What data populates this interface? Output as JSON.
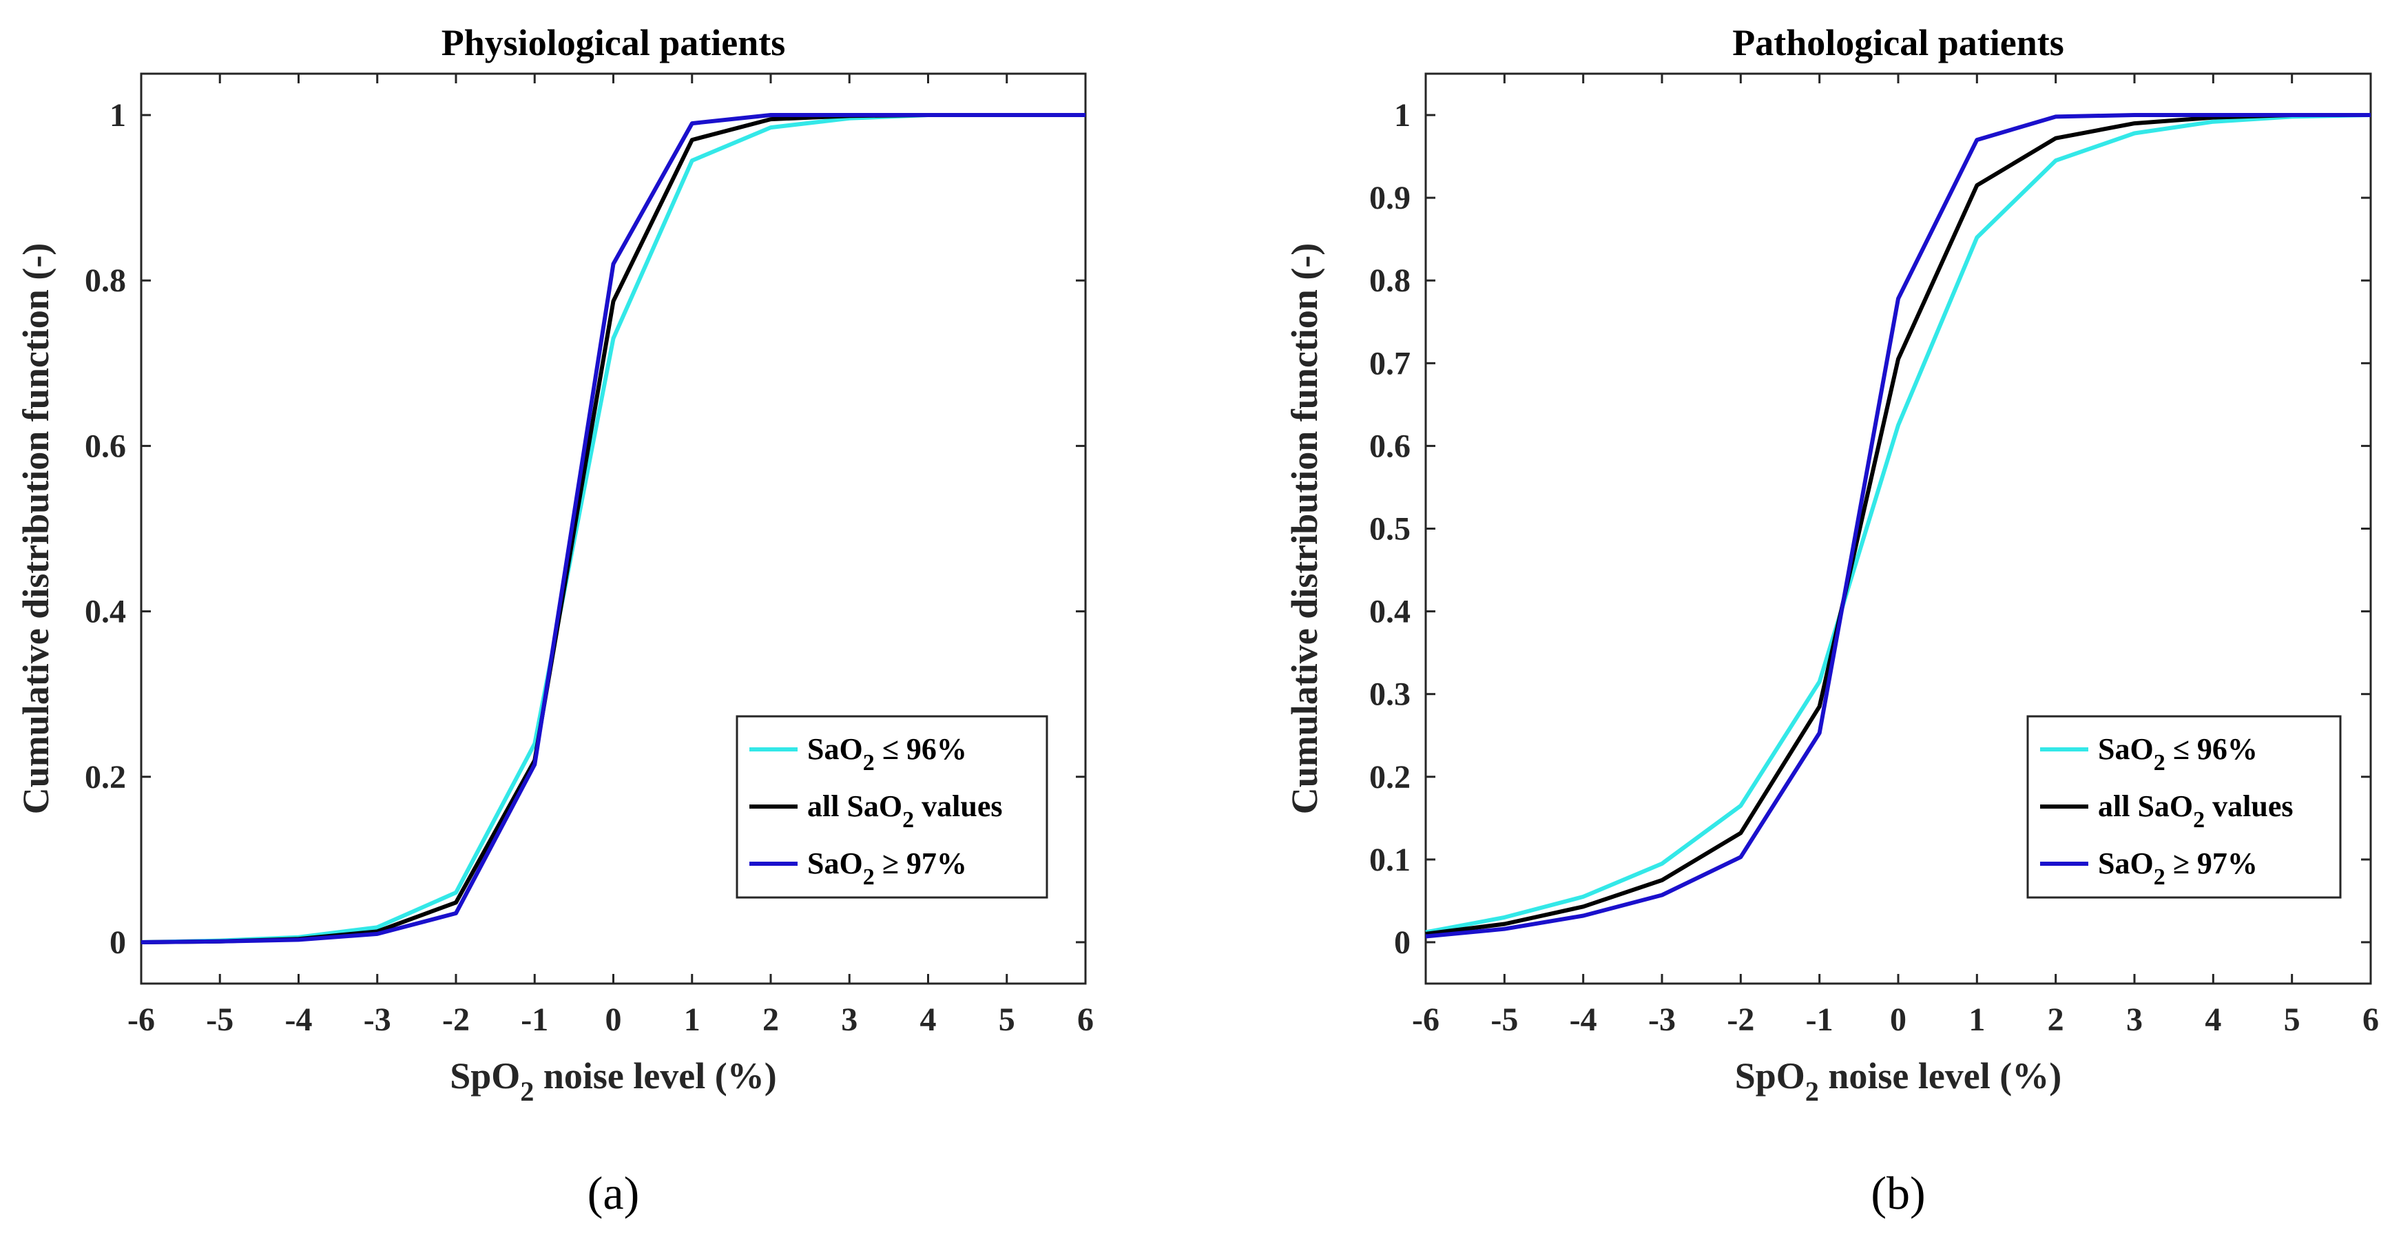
{
  "colors": {
    "cyan": "#33E8E8",
    "black": "#000000",
    "blue": "#1A10CC",
    "axis": "#262626"
  },
  "chart_data": [
    {
      "type": "line",
      "title": "Physiological patients",
      "xlabel_main": "SpO",
      "xlabel_sub": "2",
      "xlabel_rest": " noise level (%)",
      "ylabel": "Cumulative distribution function (-)",
      "panel_label": "(a)",
      "xlim": [
        -6,
        6
      ],
      "ylim": [
        -0.05,
        1.05
      ],
      "x_ticks": [
        "-6",
        "-5",
        "-4",
        "-3",
        "-2",
        "-1",
        "0",
        "1",
        "2",
        "3",
        "4",
        "5",
        "6"
      ],
      "y_ticks": [
        0,
        0.2,
        0.4,
        0.6,
        0.8,
        1
      ],
      "y_tick_labels": [
        "0",
        "0.2",
        "0.4",
        "0.6",
        "0.8",
        "1"
      ],
      "x": [
        -6,
        -5,
        -4,
        -3,
        -2,
        -1,
        0,
        1,
        2,
        3,
        4,
        5,
        6
      ],
      "series": [
        {
          "key": "low",
          "values": [
            0,
            0.002,
            0.006,
            0.018,
            0.06,
            0.24,
            0.73,
            0.945,
            0.985,
            0.996,
            1,
            1,
            1
          ]
        },
        {
          "key": "all",
          "values": [
            0,
            0.001,
            0.004,
            0.013,
            0.048,
            0.22,
            0.775,
            0.97,
            0.995,
            0.999,
            1,
            1,
            1
          ]
        },
        {
          "key": "high",
          "values": [
            0,
            0.001,
            0.003,
            0.01,
            0.035,
            0.215,
            0.82,
            0.99,
            1,
            1,
            1,
            1,
            1
          ]
        }
      ],
      "legend": [
        {
          "pre": "SaO",
          "sub": "2",
          "post": " ≤ 96%"
        },
        {
          "pre": "all SaO",
          "sub": "2",
          "post": " values"
        },
        {
          "pre": "SaO",
          "sub": "2",
          "post": " ≥ 97%"
        }
      ]
    },
    {
      "type": "line",
      "title": "Pathological patients",
      "xlabel_main": "SpO",
      "xlabel_sub": "2",
      "xlabel_rest": " noise level (%)",
      "ylabel": "Cumulative distribution function (-)",
      "panel_label": "(b)",
      "xlim": [
        -6,
        6
      ],
      "ylim": [
        -0.05,
        1.05
      ],
      "x_ticks": [
        "-6",
        "-5",
        "-4",
        "-3",
        "-2",
        "-1",
        "0",
        "1",
        "2",
        "3",
        "4",
        "5",
        "6"
      ],
      "y_ticks": [
        0,
        0.1,
        0.2,
        0.3,
        0.4,
        0.5,
        0.6,
        0.7,
        0.8,
        0.9,
        1
      ],
      "y_tick_labels": [
        "0",
        "0.1",
        "0.2",
        "0.3",
        "0.4",
        "0.5",
        "0.6",
        "0.7",
        "0.8",
        "0.9",
        "1"
      ],
      "x": [
        -6,
        -5,
        -4,
        -3,
        -2,
        -1,
        0,
        1,
        2,
        3,
        4,
        5,
        6
      ],
      "series": [
        {
          "key": "low",
          "values": [
            0.012,
            0.03,
            0.055,
            0.095,
            0.165,
            0.315,
            0.625,
            0.852,
            0.945,
            0.978,
            0.992,
            0.998,
            1
          ]
        },
        {
          "key": "all",
          "values": [
            0.01,
            0.022,
            0.043,
            0.075,
            0.132,
            0.285,
            0.705,
            0.915,
            0.972,
            0.99,
            0.997,
            1,
            1
          ]
        },
        {
          "key": "high",
          "values": [
            0.007,
            0.016,
            0.032,
            0.057,
            0.103,
            0.253,
            0.778,
            0.97,
            0.998,
            1,
            1,
            1,
            1
          ]
        }
      ],
      "legend": [
        {
          "pre": "SaO",
          "sub": "2",
          "post": " ≤ 96%"
        },
        {
          "pre": "all SaO",
          "sub": "2",
          "post": " values"
        },
        {
          "pre": "SaO",
          "sub": "2",
          "post": " ≥ 97%"
        }
      ]
    }
  ]
}
